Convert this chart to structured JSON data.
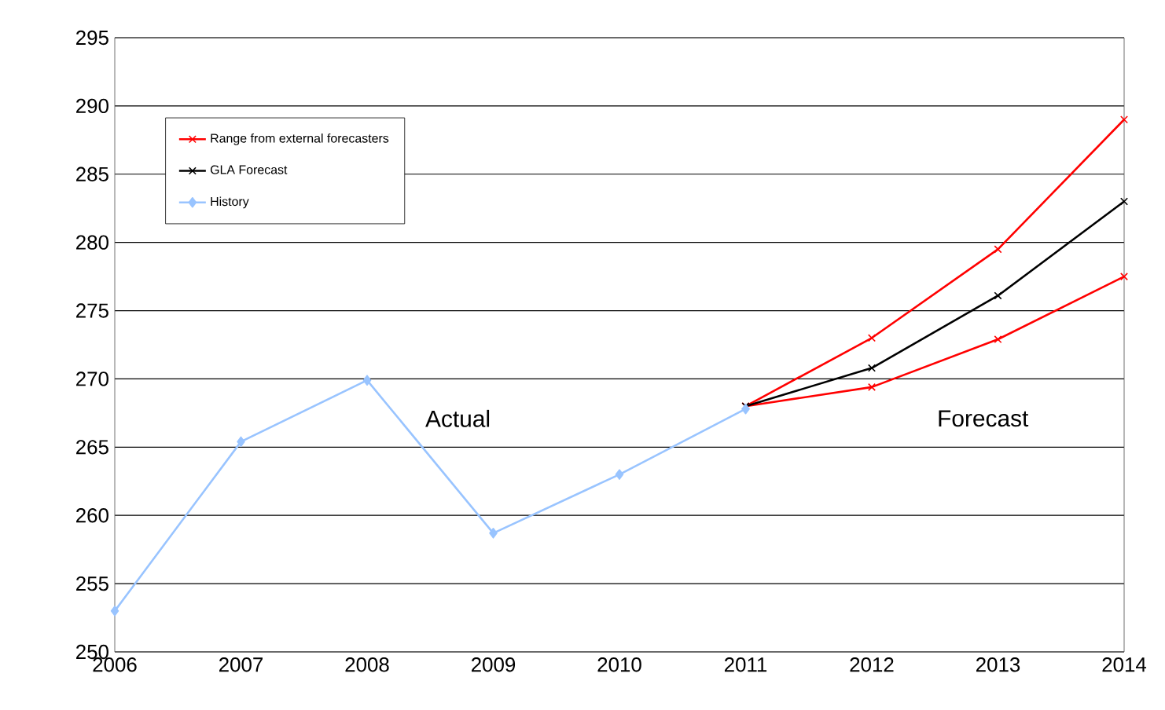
{
  "chart_data": {
    "type": "line",
    "xlim": [
      2006,
      2014
    ],
    "xticks": [
      2006,
      2007,
      2008,
      2009,
      2010,
      2011,
      2012,
      2013,
      2014
    ],
    "ylim": [
      250,
      295
    ],
    "yticks": [
      250,
      255,
      260,
      265,
      270,
      275,
      280,
      285,
      290,
      295
    ],
    "grid": "y",
    "legend": "top left",
    "annotations": [
      "Actual",
      "Forecast"
    ],
    "series": [
      {
        "name": "Range from external forecasters",
        "color": "#ff0000",
        "marker": "cross",
        "x": [
          2011,
          2012,
          2013,
          2014
        ],
        "values": [
          268,
          273,
          279.5,
          289
        ]
      },
      {
        "color": "#ff0000",
        "marker": "cross",
        "x": [
          2011,
          2012,
          2013,
          2014
        ],
        "values": [
          268,
          269.4,
          272.9,
          277.5
        ]
      },
      {
        "name": "GLA Forecast",
        "color": "#000000",
        "marker": "cross",
        "x": [
          2011,
          2012,
          2013,
          2014
        ],
        "values": [
          268,
          270.8,
          276.1,
          283
        ]
      },
      {
        "name": "History",
        "color": "#99c4ff",
        "marker": "diamond",
        "x": [
          2006,
          2007,
          2008,
          2009,
          2010,
          2011
        ],
        "values": [
          253,
          265.4,
          269.9,
          258.7,
          263,
          267.8
        ]
      }
    ]
  }
}
